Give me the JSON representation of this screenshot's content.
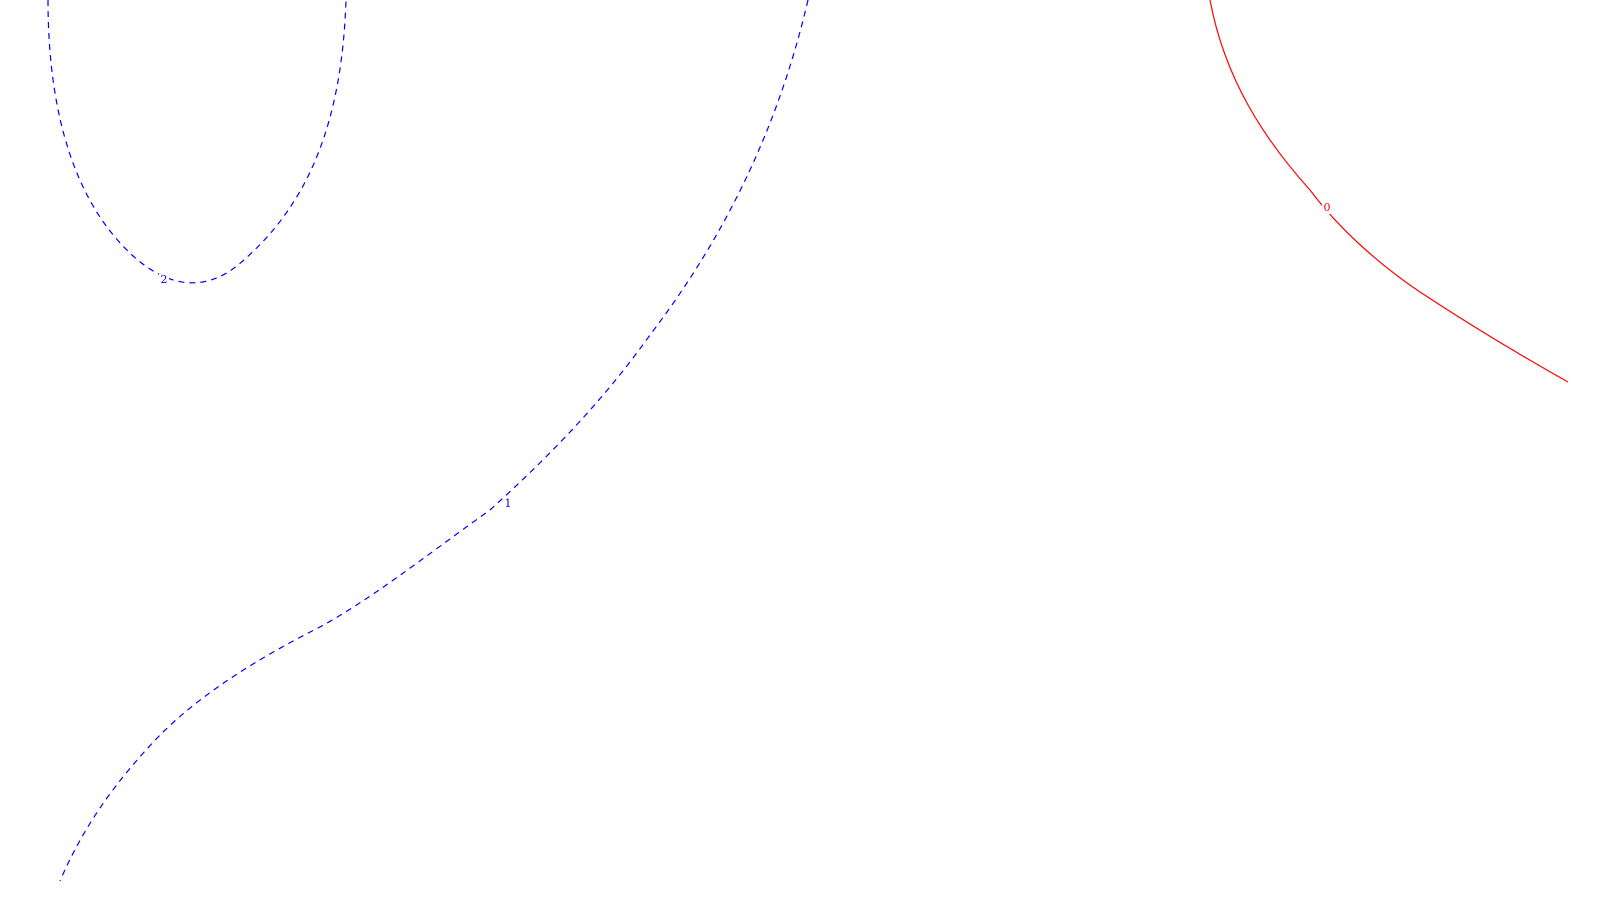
{
  "chart_data": {
    "type": "contour",
    "title": "",
    "xlabel": "",
    "ylabel": "",
    "grid": false,
    "legend": "none",
    "series": [
      {
        "level": "2",
        "label": "2",
        "style": "dashed",
        "color": "#0000ff"
      },
      {
        "level": "1",
        "label": "1",
        "style": "dashed",
        "color": "#0000ff"
      },
      {
        "level": "0",
        "label": "0",
        "style": "solid",
        "color": "#ff0000"
      }
    ]
  }
}
